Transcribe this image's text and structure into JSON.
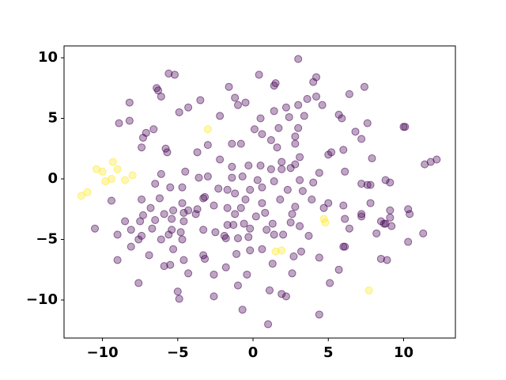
{
  "chart_data": {
    "type": "scatter",
    "xlim": [
      -12.55,
      13.44
    ],
    "ylim": [
      -13.14,
      10.98
    ],
    "xticks": [
      {
        "value": -10,
        "label": "−10"
      },
      {
        "value": -5,
        "label": "−5"
      },
      0,
      5,
      10
    ],
    "yticks": [
      {
        "value": -10,
        "label": "−10"
      },
      {
        "value": -5,
        "label": "−5"
      },
      0,
      5,
      10
    ],
    "series": [
      {
        "color": "#440154",
        "opacity": 0.35,
        "x": [
          3.0,
          -5.6,
          -5.2,
          0.4,
          4.2,
          4.0,
          1.4,
          1.5,
          -1.6,
          7.4,
          -6.4,
          -6.3,
          6.4,
          -1.2,
          3.6,
          4.2,
          -6.1,
          -8.2,
          -3.5,
          -0.5,
          -1.0,
          3.0,
          4.6,
          -4.3,
          -4.9,
          2.2,
          1.4,
          5.7,
          5.9,
          7.6,
          -8.9,
          -8.2,
          -2.2,
          3.4,
          2.4,
          0.5,
          10.0,
          10.1,
          -6.6,
          -7.1,
          0.1,
          1.7,
          3.0,
          6.8,
          0.6,
          7.2,
          -7.3,
          2.8,
          1.2,
          -3.0,
          -1.4,
          -0.8,
          1.6,
          2.8,
          -7.4,
          -5.8,
          -5.7,
          -3.7,
          5.0,
          5.2,
          7.9,
          6.0,
          11.4,
          11.8,
          12.2,
          3.1,
          -2.2,
          1.9,
          -1.4,
          -0.3,
          0.5,
          2.8,
          1.2,
          1.9,
          -4.5,
          -6.1,
          4.4,
          6.1,
          2.5,
          -3.0,
          -3.6,
          -1.4,
          -0.7,
          0.3,
          1.4,
          3.1,
          -6.5,
          7.2,
          7.6,
          7.8,
          8.8,
          9.1,
          -5.5,
          -4.7,
          -2.3,
          -1.7,
          -0.2,
          0.6,
          4.0,
          2.3,
          3.3,
          -1.2,
          -3.2,
          -3.3,
          -9.4,
          -7.4,
          -6.2,
          -0.5,
          1.8,
          -4.7,
          -2.6,
          0.6,
          3.9,
          5.0,
          6.0,
          7.8,
          -6.8,
          -1.7,
          -0.8,
          2.8,
          4.7,
          -5.3,
          -4.3,
          -3.7,
          10.3,
          9.1,
          -5.9,
          -4.6,
          -3.8,
          -1.2,
          0.8,
          2.6,
          -7.3,
          0.2,
          7.2,
          7.2,
          10.4,
          9.1,
          -8.5,
          -7.5,
          -6.5,
          -5.4,
          -4.6,
          -1.7,
          -1.3,
          -0.6,
          2.5,
          6.1,
          8.5,
          8.7,
          8.8,
          9.2,
          1.3,
          3.1,
          0.9,
          -10.5,
          -8.1,
          -5.4,
          -6.7,
          -3.3,
          -2.5,
          -0.2,
          6.4,
          -9.0,
          -7.4,
          -5.6,
          -4.8,
          -1.9,
          1.4,
          2.0,
          3.7,
          8.2,
          11.3,
          -7.6,
          -6.1,
          -4.7,
          -1.8,
          -1.0,
          -0.3,
          10.3,
          -8.1,
          6.0,
          6.1,
          -0.2,
          0.6,
          3.2,
          -5.3,
          -1.1,
          -6.9,
          -3.3,
          -3.2,
          2.7,
          4.4,
          -9.0,
          -4.6,
          -5.5,
          8.5,
          8.9,
          -5.9,
          1.3,
          -1.8,
          5.7,
          -4.3,
          -2.6,
          2.6,
          -0.4,
          -7.6,
          -1.0,
          5.1,
          1.1,
          1.9,
          2.2,
          -5.0,
          -2.6,
          -4.9,
          -0.7,
          4.4,
          1.0
        ],
        "values": [
          9.9,
          8.7,
          8.6,
          8.6,
          8.4,
          8.0,
          7.7,
          7.9,
          7.6,
          7.6,
          7.5,
          7.3,
          7.0,
          6.7,
          6.6,
          6.8,
          6.8,
          6.3,
          6.5,
          6.3,
          6.1,
          6.1,
          6.1,
          5.9,
          5.5,
          5.9,
          5.6,
          5.3,
          5.0,
          4.6,
          4.6,
          4.8,
          5.2,
          5.2,
          5.1,
          5.0,
          4.3,
          4.3,
          4.1,
          3.8,
          4.1,
          4.2,
          4.2,
          3.9,
          3.7,
          3.3,
          3.4,
          3.5,
          3.2,
          2.8,
          2.9,
          2.9,
          2.6,
          2.9,
          2.6,
          2.5,
          2.2,
          2.2,
          2.0,
          2.2,
          1.7,
          2.4,
          1.2,
          1.4,
          1.6,
          1.8,
          1.6,
          1.4,
          1.0,
          1.1,
          1.1,
          1.2,
          0.8,
          0.8,
          0.6,
          0.4,
          0.5,
          0.6,
          0.9,
          0.2,
          0.1,
          0.1,
          0.2,
          -0.1,
          -0.2,
          -0.1,
          -0.4,
          -0.4,
          -0.5,
          -0.5,
          -0.1,
          -0.3,
          -0.7,
          -0.7,
          -0.8,
          -0.9,
          -0.9,
          -0.7,
          -0.3,
          -0.9,
          -1.0,
          -1.2,
          -1.5,
          -1.6,
          -1.8,
          -1.7,
          -1.6,
          -1.7,
          -1.7,
          -2.0,
          -2.2,
          -2.0,
          -1.7,
          -2.0,
          -2.2,
          -2.0,
          -2.4,
          -2.4,
          -2.4,
          -2.3,
          -2.4,
          -2.6,
          -2.6,
          -2.5,
          -2.5,
          -2.6,
          -2.9,
          -2.8,
          -2.9,
          -2.9,
          -2.8,
          -2.9,
          -3.0,
          -3.1,
          -2.9,
          -3.1,
          -2.9,
          -3.2,
          -3.5,
          -3.5,
          -3.4,
          -3.3,
          -3.5,
          -3.8,
          -3.8,
          -3.7,
          -3.6,
          -3.3,
          -3.5,
          -3.7,
          -3.7,
          -3.9,
          -3.7,
          -3.9,
          -4.2,
          -4.1,
          -4.2,
          -4.2,
          -4.1,
          -4.2,
          -4.4,
          -4.1,
          -4.1,
          -4.6,
          -4.7,
          -4.6,
          -4.4,
          -4.7,
          -4.6,
          -4.6,
          -4.7,
          -4.5,
          -4.5,
          -5.0,
          -5.0,
          -5.0,
          -4.9,
          -4.9,
          -4.8,
          -5.2,
          -5.6,
          -5.6,
          -5.6,
          -5.9,
          -5.8,
          -6.0,
          -5.8,
          -6.2,
          -6.3,
          -6.3,
          -6.6,
          -6.4,
          -6.5,
          -6.7,
          -6.7,
          -7.1,
          -6.6,
          -6.7,
          -7.2,
          -7.0,
          -7.3,
          -7.5,
          -7.8,
          -7.9,
          -7.8,
          -7.9,
          -8.6,
          -8.8,
          -8.6,
          -9.2,
          -9.5,
          -9.7,
          -9.3,
          -9.7,
          -9.9,
          -10.8,
          -11.2,
          -12.0
        ]
      },
      {
        "color": "#fde725",
        "opacity": 0.35,
        "x": [
          -11.4,
          -11.0,
          -10.4,
          -10.0,
          -9.8,
          -9.3,
          -9.0,
          -9.4,
          -8.5,
          -8.0,
          -3.0,
          1.5,
          1.9,
          4.7,
          4.8,
          7.7
        ],
        "values": [
          -1.4,
          -1.1,
          0.8,
          0.6,
          -0.2,
          1.4,
          0.8,
          0.0,
          -0.1,
          0.3,
          4.1,
          -6.0,
          -5.9,
          -3.3,
          -3.6,
          -9.2
        ]
      }
    ]
  }
}
